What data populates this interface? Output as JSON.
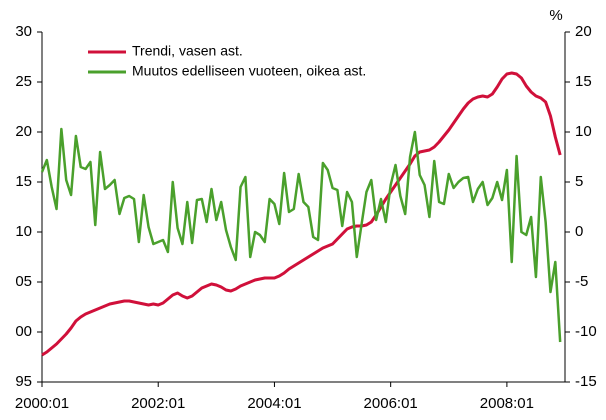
{
  "chart_data": {
    "type": "line",
    "y2label": "%",
    "legend": "upper left",
    "categories": [
      "2000:01",
      null,
      null,
      null,
      null,
      null,
      null,
      null,
      null,
      null,
      null,
      null,
      null,
      null,
      null,
      null,
      null,
      null,
      null,
      null,
      null,
      null,
      null,
      null,
      "2002:01",
      null,
      null,
      null,
      null,
      null,
      null,
      null,
      null,
      null,
      null,
      null,
      null,
      null,
      null,
      null,
      null,
      null,
      null,
      null,
      null,
      null,
      null,
      null,
      "2004:01",
      null,
      null,
      null,
      null,
      null,
      null,
      null,
      null,
      null,
      null,
      null,
      null,
      null,
      null,
      null,
      null,
      null,
      null,
      null,
      null,
      null,
      null,
      null,
      "2006:01",
      null,
      null,
      null,
      null,
      null,
      null,
      null,
      null,
      null,
      null,
      null,
      null,
      null,
      null,
      null,
      null,
      null,
      null,
      null,
      null,
      null,
      null,
      null,
      "2008:01",
      null,
      null,
      null,
      null,
      null,
      null,
      null,
      null,
      null,
      null,
      null
    ],
    "ylim": [
      95,
      130
    ],
    "yticks": [
      95,
      {
        "value": 100,
        "label": "00"
      },
      {
        "value": 105,
        "label": "05"
      },
      {
        "value": 110,
        "label": "10"
      },
      {
        "value": 115,
        "label": "15"
      },
      {
        "value": 120,
        "label": "20"
      },
      {
        "value": 125,
        "label": "25"
      },
      {
        "value": 130,
        "label": "30"
      }
    ],
    "y2lim": [
      -15,
      20
    ],
    "y2ticks": [
      -15,
      -10,
      -5,
      0,
      5,
      10,
      15,
      20
    ],
    "series": [
      {
        "name": "Trendi, vasen ast.",
        "color": "#d0103a",
        "axis": "y",
        "values": [
          97.7,
          98,
          98.4,
          98.8,
          99.3,
          99.8,
          100.4,
          101.1,
          101.5,
          101.8,
          102,
          102.2,
          102.4,
          102.6,
          102.8,
          102.9,
          103,
          103.1,
          103.1,
          103,
          102.9,
          102.8,
          102.7,
          102.8,
          102.7,
          102.9,
          103.3,
          103.7,
          103.9,
          103.6,
          103.4,
          103.6,
          104,
          104.4,
          104.6,
          104.8,
          104.7,
          104.5,
          104.2,
          104.1,
          104.3,
          104.6,
          104.8,
          105,
          105.2,
          105.3,
          105.4,
          105.4,
          105.4,
          105.6,
          105.9,
          106.3,
          106.6,
          106.9,
          107.2,
          107.5,
          107.8,
          108.1,
          108.4,
          108.6,
          108.8,
          109.3,
          109.8,
          110.3,
          110.5,
          110.6,
          110.6,
          110.7,
          111,
          111.7,
          112.5,
          113.3,
          114,
          114.7,
          115.4,
          116.1,
          116.8,
          117.6,
          118,
          118.1,
          118.2,
          118.5,
          119,
          119.6,
          120.2,
          120.9,
          121.6,
          122.3,
          122.9,
          123.3,
          123.5,
          123.6,
          123.5,
          123.8,
          124.5,
          125.3,
          125.8,
          125.9,
          125.8,
          125.4,
          124.6,
          124,
          123.6,
          123.4,
          123,
          121.6,
          119.5,
          117.7
        ]
      },
      {
        "name": "Muutos edelliseen vuoteen, oikea ast.",
        "color": "#4aa02c",
        "axis": "y2",
        "values": [
          6,
          7.2,
          4.5,
          2.3,
          10.3,
          5.2,
          3.7,
          9.6,
          6.5,
          6.3,
          7,
          0.7,
          8,
          4.3,
          4.7,
          5.2,
          1.8,
          3.4,
          3.6,
          3.3,
          -1,
          3.7,
          0.5,
          -1.2,
          -1,
          -0.8,
          -2,
          5,
          0.4,
          -1.2,
          3,
          -1.1,
          3.2,
          3.3,
          1,
          4.3,
          1.2,
          3,
          0.2,
          -1.5,
          -2.8,
          4.5,
          5.5,
          -2.5,
          0,
          -0.3,
          -1,
          3.3,
          2.8,
          0.8,
          5.9,
          2,
          2.3,
          5.8,
          3,
          2.5,
          -0.5,
          -0.8,
          6.9,
          6.2,
          4.4,
          4.2,
          0.6,
          4,
          3,
          -2.5,
          0.8,
          4,
          5.2,
          1.2,
          3.3,
          1,
          4.7,
          6.7,
          3.6,
          1.8,
          7.5,
          10,
          5.7,
          4.7,
          1.5,
          7.1,
          3,
          2.8,
          5.8,
          4.4,
          5,
          5.4,
          5.5,
          3,
          4.3,
          5,
          2.7,
          3.4,
          5,
          3.2,
          6.2,
          -3,
          7.6,
          0,
          -0.3,
          1.5,
          -4.5,
          5.5,
          1,
          -6,
          -3,
          -11
        ]
      }
    ]
  }
}
